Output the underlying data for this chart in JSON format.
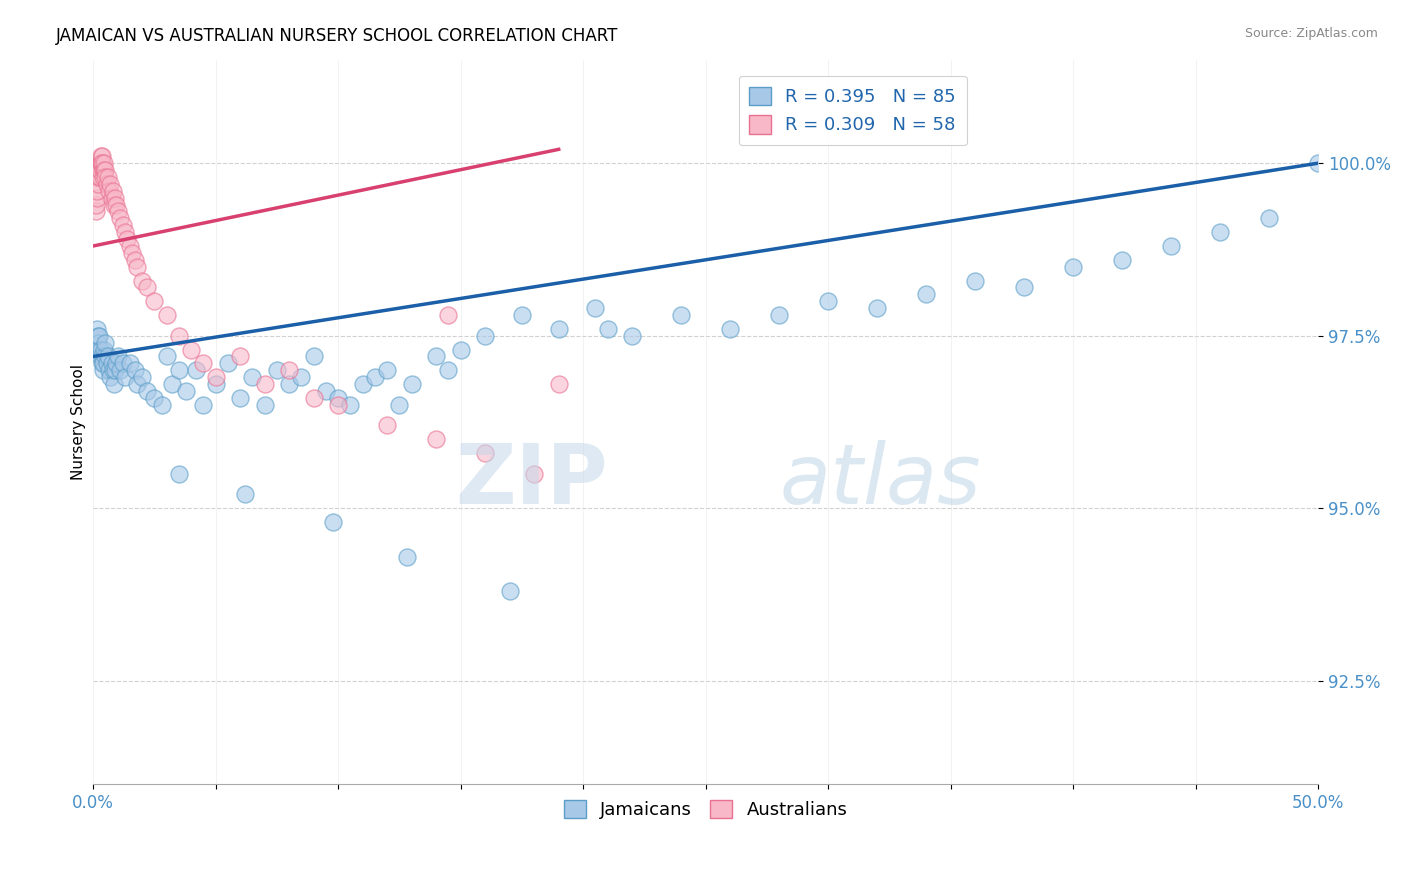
{
  "title": "JAMAICAN VS AUSTRALIAN NURSERY SCHOOL CORRELATION CHART",
  "source": "Source: ZipAtlas.com",
  "ylabel": "Nursery School",
  "xlim": [
    0.0,
    50.0
  ],
  "ylim": [
    91.0,
    101.5
  ],
  "yticks": [
    92.5,
    95.0,
    97.5,
    100.0
  ],
  "ytick_labels": [
    "92.5%",
    "95.0%",
    "97.5%",
    "100.0%"
  ],
  "blue_color": "#a8c8e8",
  "blue_edge": "#5a9ec8",
  "pink_color": "#f8b8c8",
  "pink_edge": "#e87090",
  "blue_line_color": "#1a5fa8",
  "pink_line_color": "#d84070",
  "R_blue": 0.395,
  "N_blue": 85,
  "R_pink": 0.309,
  "N_pink": 58,
  "watermark_zip": "ZIP",
  "watermark_atlas": "atlas",
  "blue_x": [
    0.15,
    0.18,
    0.2,
    0.22,
    0.25,
    0.28,
    0.3,
    0.35,
    0.38,
    0.4,
    0.42,
    0.45,
    0.48,
    0.5,
    0.55,
    0.6,
    0.65,
    0.7,
    0.75,
    0.8,
    0.85,
    0.9,
    0.95,
    1.0,
    1.1,
    1.2,
    1.3,
    1.5,
    1.7,
    1.8,
    2.0,
    2.2,
    2.5,
    2.8,
    3.0,
    3.2,
    3.5,
    3.8,
    4.2,
    4.5,
    5.0,
    5.5,
    6.0,
    6.5,
    7.0,
    7.5,
    8.0,
    8.5,
    9.0,
    9.5,
    10.0,
    10.5,
    11.0,
    11.5,
    12.0,
    12.5,
    13.0,
    14.0,
    14.5,
    15.0,
    16.0,
    17.5,
    19.0,
    20.5,
    22.0,
    24.0,
    26.0,
    28.0,
    30.0,
    32.0,
    34.0,
    36.0,
    38.0,
    40.0,
    42.0,
    44.0,
    46.0,
    48.0,
    50.0,
    3.5,
    6.2,
    9.8,
    12.8,
    17.0,
    21.0
  ],
  "blue_y": [
    97.6,
    97.5,
    97.4,
    97.3,
    97.5,
    97.2,
    97.3,
    97.2,
    97.1,
    97.0,
    97.1,
    97.3,
    97.2,
    97.4,
    97.1,
    97.2,
    97.0,
    96.9,
    97.1,
    97.0,
    96.8,
    97.0,
    97.1,
    97.2,
    97.0,
    97.1,
    96.9,
    97.1,
    97.0,
    96.8,
    96.9,
    96.7,
    96.6,
    96.5,
    97.2,
    96.8,
    97.0,
    96.7,
    97.0,
    96.5,
    96.8,
    97.1,
    96.6,
    96.9,
    96.5,
    97.0,
    96.8,
    96.9,
    97.2,
    96.7,
    96.6,
    96.5,
    96.8,
    96.9,
    97.0,
    96.5,
    96.8,
    97.2,
    97.0,
    97.3,
    97.5,
    97.8,
    97.6,
    97.9,
    97.5,
    97.8,
    97.6,
    97.8,
    98.0,
    97.9,
    98.1,
    98.3,
    98.2,
    98.5,
    98.6,
    98.8,
    99.0,
    99.2,
    100.0,
    95.5,
    95.2,
    94.8,
    94.3,
    93.8,
    97.6
  ],
  "pink_x": [
    0.1,
    0.12,
    0.14,
    0.16,
    0.18,
    0.2,
    0.22,
    0.24,
    0.26,
    0.28,
    0.3,
    0.32,
    0.34,
    0.36,
    0.38,
    0.4,
    0.42,
    0.44,
    0.46,
    0.48,
    0.5,
    0.55,
    0.6,
    0.65,
    0.7,
    0.75,
    0.8,
    0.85,
    0.9,
    0.95,
    1.0,
    1.1,
    1.2,
    1.3,
    1.4,
    1.5,
    1.6,
    1.7,
    1.8,
    2.0,
    2.2,
    2.5,
    3.0,
    3.5,
    4.0,
    4.5,
    5.0,
    6.0,
    7.0,
    8.0,
    9.0,
    10.0,
    12.0,
    14.0,
    16.0,
    18.0,
    14.5,
    19.0
  ],
  "pink_y": [
    99.3,
    99.4,
    99.5,
    99.6,
    99.7,
    99.8,
    99.9,
    100.0,
    99.8,
    99.9,
    100.0,
    100.1,
    100.0,
    100.1,
    100.0,
    99.9,
    99.8,
    99.9,
    100.0,
    99.9,
    99.8,
    99.7,
    99.8,
    99.6,
    99.7,
    99.5,
    99.6,
    99.4,
    99.5,
    99.4,
    99.3,
    99.2,
    99.1,
    99.0,
    98.9,
    98.8,
    98.7,
    98.6,
    98.5,
    98.3,
    98.2,
    98.0,
    97.8,
    97.5,
    97.3,
    97.1,
    96.9,
    97.2,
    96.8,
    97.0,
    96.6,
    96.5,
    96.2,
    96.0,
    95.8,
    95.5,
    97.8,
    96.8
  ]
}
